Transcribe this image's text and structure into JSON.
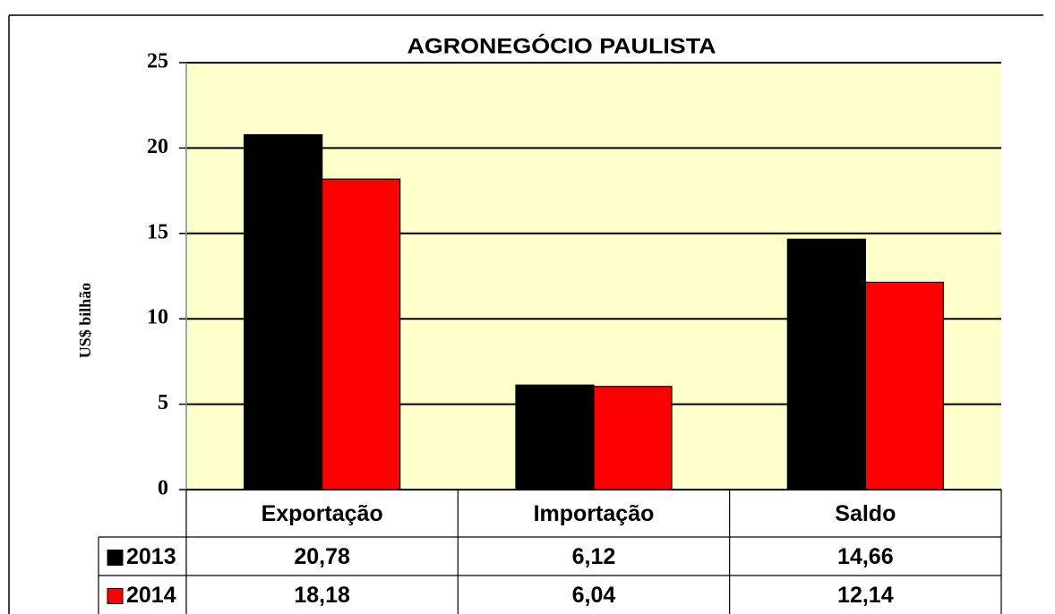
{
  "chart_data": {
    "type": "bar",
    "title": "AGRONEGÓCIO PAULISTA",
    "y_label": "US$ bilhão",
    "categories": [
      "Exportação",
      "Importação",
      "Saldo"
    ],
    "series": [
      {
        "name": "2013",
        "color": "#000000",
        "values": [
          20.78,
          6.12,
          14.66
        ],
        "value_labels": [
          "20,78",
          "6,12",
          "14,66"
        ]
      },
      {
        "name": "2014",
        "color": "#ff0000",
        "values": [
          18.18,
          6.04,
          12.14
        ],
        "value_labels": [
          "18,18",
          "6,04",
          "12,14"
        ]
      }
    ],
    "ylim": [
      0,
      25
    ],
    "yticks": [
      0,
      5,
      10,
      15,
      20,
      25
    ],
    "grid": true,
    "plot_background": "#ffffcc"
  }
}
